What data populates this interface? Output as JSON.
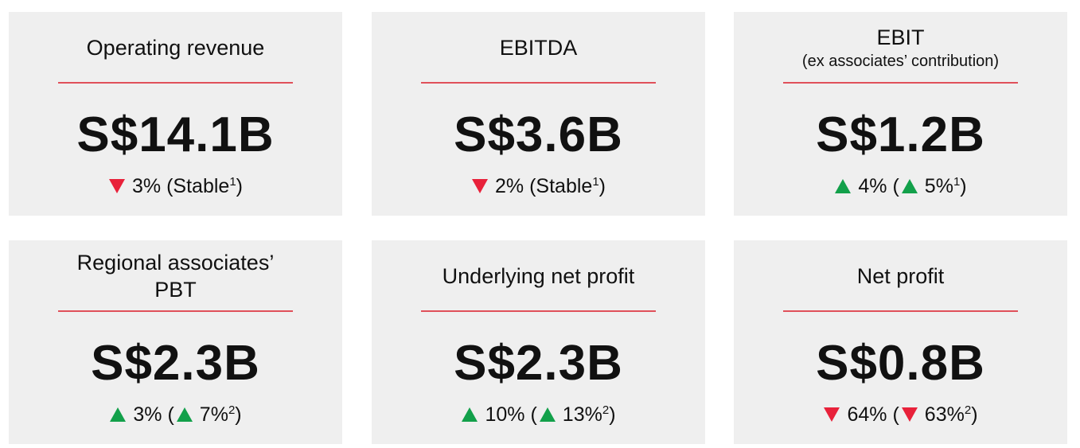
{
  "cards": [
    {
      "title_lines": [
        "Operating revenue"
      ],
      "value": "S$14.1B",
      "change": [
        {
          "arrow": "down"
        },
        {
          "text": "3% (Stable"
        },
        {
          "sup": "1"
        },
        {
          "text": ")"
        }
      ]
    },
    {
      "title_lines": [
        "EBITDA"
      ],
      "value": "S$3.6B",
      "change": [
        {
          "arrow": "down"
        },
        {
          "text": "2% (Stable"
        },
        {
          "sup": "1"
        },
        {
          "text": ")"
        }
      ]
    },
    {
      "title_lines": [
        "EBIT"
      ],
      "subtitle": "(ex associates’ contribution)",
      "value": "S$1.2B",
      "change": [
        {
          "arrow": "up"
        },
        {
          "text": "4% ("
        },
        {
          "arrow": "up"
        },
        {
          "text": "5%"
        },
        {
          "sup": "1"
        },
        {
          "text": ")"
        }
      ]
    },
    {
      "title_lines": [
        "Regional associates’",
        "PBT"
      ],
      "value": "S$2.3B",
      "change": [
        {
          "arrow": "up"
        },
        {
          "text": "3% ("
        },
        {
          "arrow": "up"
        },
        {
          "text": "7%"
        },
        {
          "sup": "2"
        },
        {
          "text": ")"
        }
      ]
    },
    {
      "title_lines": [
        "Underlying net profit"
      ],
      "value": "S$2.3B",
      "change": [
        {
          "arrow": "up"
        },
        {
          "text": "10% ("
        },
        {
          "arrow": "up"
        },
        {
          "text": "13%"
        },
        {
          "sup": "2"
        },
        {
          "text": ")"
        }
      ]
    },
    {
      "title_lines": [
        "Net profit"
      ],
      "value": "S$0.8B",
      "change": [
        {
          "arrow": "down"
        },
        {
          "text": "64% ("
        },
        {
          "arrow": "down"
        },
        {
          "text": "63%"
        },
        {
          "sup": "2"
        },
        {
          "text": ")"
        }
      ]
    }
  ]
}
